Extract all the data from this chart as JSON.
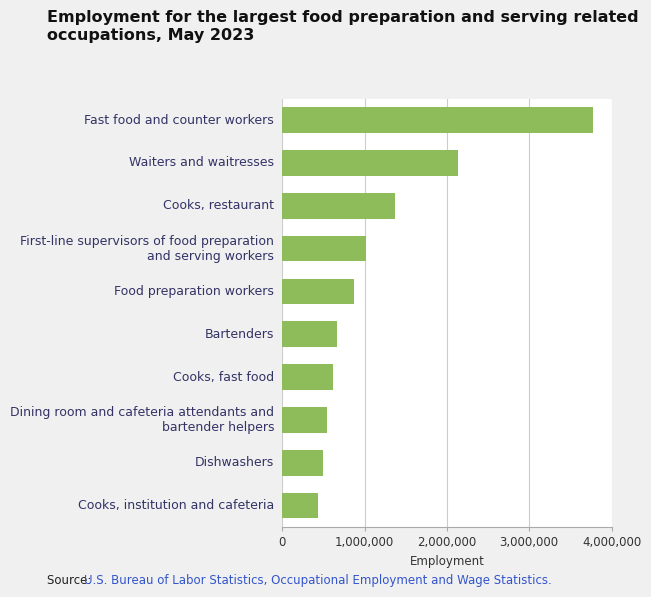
{
  "title_line1": "Employment for the largest food preparation and serving related",
  "title_line2": "occupations, May 2023",
  "categories": [
    "Cooks, institution and cafeteria",
    "Dishwashers",
    "Dining room and cafeteria attendants and\nbartender helpers",
    "Cooks, fast food",
    "Bartenders",
    "Food preparation workers",
    "First-line supervisors of food preparation\nand serving workers",
    "Cooks, restaurant",
    "Waiters and waitresses",
    "Fast food and counter workers"
  ],
  "values": [
    430000,
    490000,
    540000,
    620000,
    660000,
    870000,
    1020000,
    1370000,
    2130000,
    3780000
  ],
  "bar_color": "#8fbc5a",
  "xlabel": "Employment",
  "xlim": [
    0,
    4000000
  ],
  "xticks": [
    0,
    1000000,
    2000000,
    3000000,
    4000000
  ],
  "xtick_labels": [
    "0",
    "1,000,000",
    "2,000,000",
    "3,000,000",
    "4,000,000"
  ],
  "source_prefix": "Source: ",
  "source_link": "U.S. Bureau of Labor Statistics, Occupational Employment and Wage Statistics.",
  "bg_color": "#f0f0f0",
  "plot_bg_color": "#ffffff",
  "title_fontsize": 11.5,
  "label_fontsize": 9.0,
  "tick_fontsize": 8.5,
  "source_fontsize": 8.5
}
